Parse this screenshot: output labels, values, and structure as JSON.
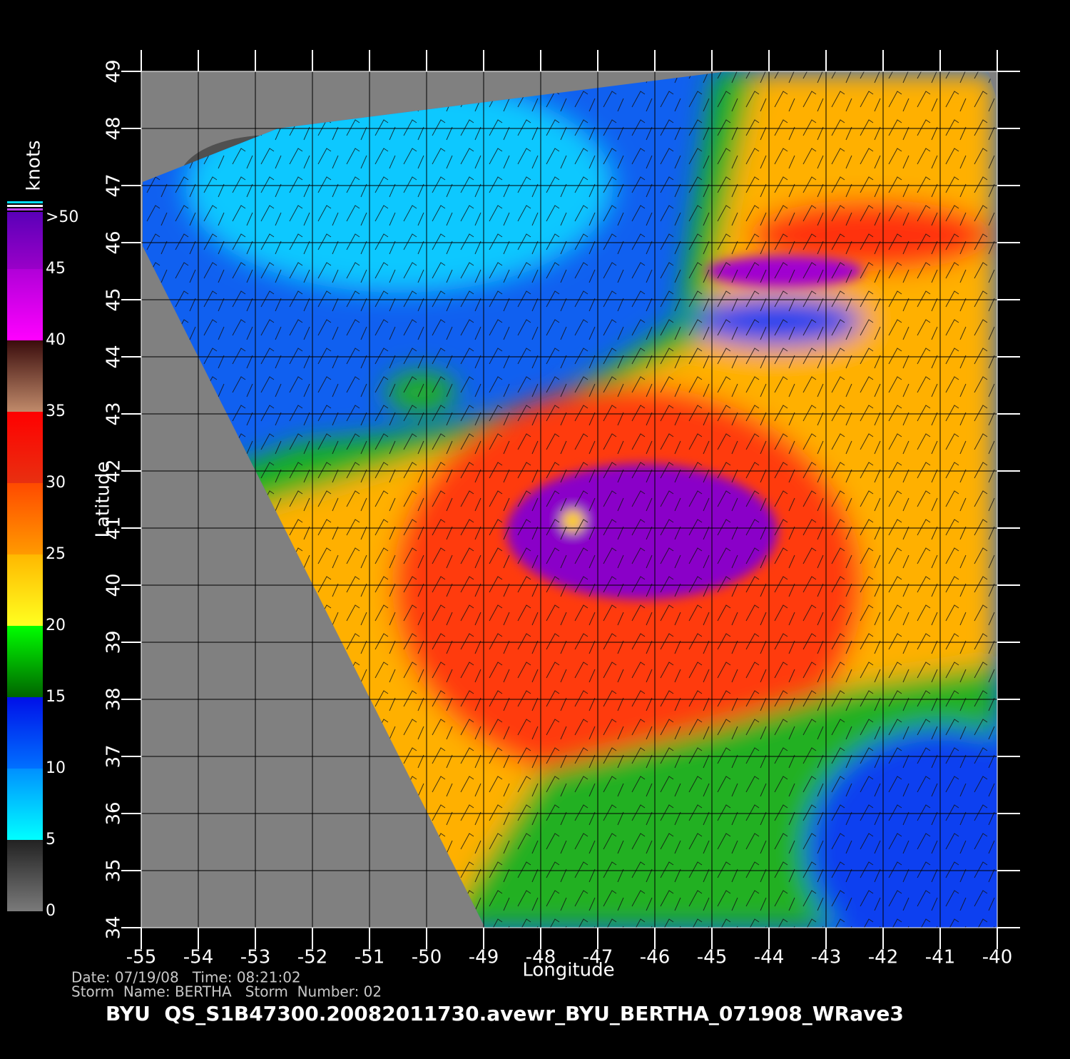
{
  "map": {
    "xlabel": "Longitude",
    "ylabel": "Latitude",
    "xlim": [
      -55,
      -40
    ],
    "ylim": [
      34,
      49
    ],
    "xticks": [
      -55,
      -54,
      -53,
      -52,
      -51,
      -50,
      -49,
      -48,
      -47,
      -46,
      -45,
      -44,
      -43,
      -42,
      -41,
      -40
    ],
    "yticks": [
      34,
      35,
      36,
      37,
      38,
      39,
      40,
      41,
      42,
      43,
      44,
      45,
      46,
      47,
      48,
      49
    ],
    "grid": true,
    "colorbar": {
      "title": "knots",
      "ylim": [
        0,
        49
      ],
      "ticks": [
        0,
        5,
        10,
        15,
        20,
        25,
        30,
        35,
        40,
        45,
        {
          "value": 50,
          "label": ">50"
        }
      ],
      "colors": [
        [
          "#7a7a7a",
          "#222222"
        ],
        [
          "#00ffff",
          "#0090ff"
        ],
        [
          "#0070ff",
          "#0010e8"
        ],
        [
          "#006400",
          "#00ff00"
        ],
        [
          "#ffff20",
          "#ffb800"
        ],
        [
          "#ff9a00",
          "#ff4a00"
        ],
        [
          "#e83010",
          "#ff0000"
        ],
        [
          "#c08a6a",
          "#3a0c0c"
        ],
        [
          "#ff00ff",
          "#b000d8"
        ],
        [
          "#9a00c8",
          "#5a00b8"
        ]
      ]
    }
  },
  "footer": {
    "info_line_1": "Date: 07/19/08   Time: 08:21:02",
    "info_line_2": "Storm  Name: BERTHA   Storm  Number: 02",
    "file_line": "BYU  QS_S1B47300.20082011730.avewr_BYU_BERTHA_071908_WRave3"
  }
}
